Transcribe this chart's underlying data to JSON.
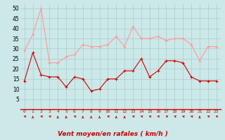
{
  "x": [
    0,
    1,
    2,
    3,
    4,
    5,
    6,
    7,
    8,
    9,
    10,
    11,
    12,
    13,
    14,
    15,
    16,
    17,
    18,
    19,
    20,
    21,
    22,
    23
  ],
  "wind_avg": [
    14,
    28,
    17,
    16,
    16,
    11,
    16,
    15,
    9,
    10,
    15,
    15,
    19,
    19,
    25,
    16,
    19,
    24,
    24,
    23,
    16,
    14,
    14,
    14
  ],
  "wind_gust": [
    29,
    37,
    50,
    23,
    23,
    26,
    27,
    32,
    31,
    31,
    32,
    36,
    31,
    41,
    35,
    35,
    36,
    34,
    35,
    35,
    32,
    24,
    31,
    31
  ],
  "avg_color": "#cc0000",
  "gust_color": "#ff9999",
  "bg_color": "#cce8e8",
  "grid_color": "#aacccc",
  "xlabel": "Vent moyen/en rafales ( km/h )",
  "xlabel_color": "#cc0000",
  "ylim": [
    0,
    52
  ],
  "yticks": [
    5,
    10,
    15,
    20,
    25,
    30,
    35,
    40,
    45,
    50
  ],
  "arrow_angles": [
    225,
    270,
    225,
    225,
    270,
    270,
    225,
    270,
    270,
    270,
    225,
    270,
    270,
    225,
    225,
    225,
    225,
    225,
    225,
    225,
    225,
    270,
    225,
    225
  ]
}
